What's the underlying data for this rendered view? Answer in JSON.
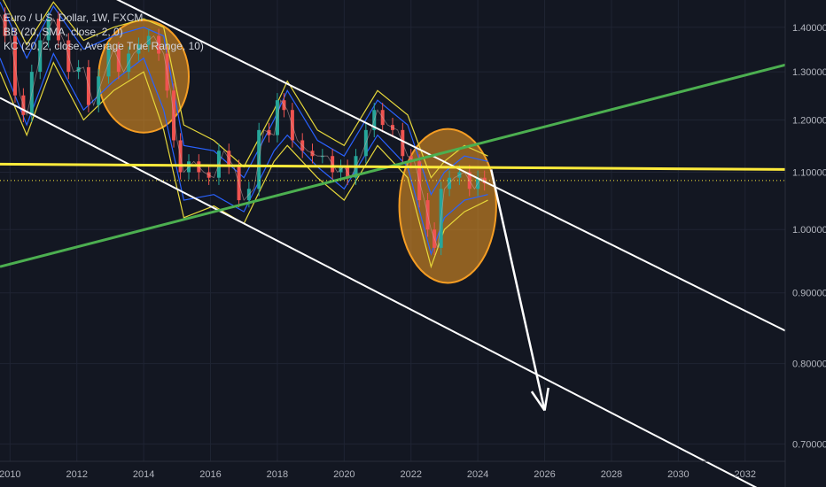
{
  "legend": {
    "symbol": "Euro / U.S. Dollar, 1W, FXCM",
    "bb": "BB (20, SMA, close, 2, 0)",
    "kc": "KC (20, 2, close, Average True Range, 10)"
  },
  "colors": {
    "background": "#131722",
    "grid": "#1f2433",
    "axis_text": "#b2b5be",
    "trend_white": "#ffffff",
    "support_green": "#4caf50",
    "resistance_yellow": "#ffeb3b",
    "highlight_orange": "#f59d23",
    "bb_band": "#2962ff",
    "kc_band": "#e6d73a",
    "candle_up": "#26a69a",
    "candle_down": "#ef5350"
  },
  "chart_data": {
    "type": "line",
    "x_ticks": [
      2010,
      2012,
      2014,
      2016,
      2018,
      2020,
      2022,
      2024,
      2026,
      2028,
      2030,
      2032
    ],
    "y_ticks": [
      "1.40000",
      "1.30000",
      "1.20000",
      "1.10000",
      "1.00000",
      "0.90000",
      "0.80000",
      "0.70000"
    ],
    "y_tick_values": [
      1.4,
      1.3,
      1.2,
      1.1,
      1.0,
      0.9,
      0.8,
      0.7
    ],
    "xlim": [
      2009.7,
      2033.2
    ],
    "ylim": [
      0.68,
      1.465
    ],
    "y_scale": "log",
    "price": {
      "x": [
        2009.7,
        2010.0,
        2010.3,
        2010.5,
        2010.8,
        2011.0,
        2011.3,
        2011.6,
        2011.9,
        2012.2,
        2012.5,
        2012.8,
        2013.1,
        2013.4,
        2013.7,
        2014.0,
        2014.3,
        2014.6,
        2014.8,
        2015.0,
        2015.2,
        2015.5,
        2015.8,
        2016.1,
        2016.4,
        2016.7,
        2017.0,
        2017.3,
        2017.6,
        2017.9,
        2018.1,
        2018.3,
        2018.6,
        2018.9,
        2019.2,
        2019.5,
        2019.8,
        2020.0,
        2020.2,
        2020.5,
        2020.8,
        2021.0,
        2021.3,
        2021.6,
        2021.9,
        2022.1,
        2022.4,
        2022.6,
        2022.8,
        2023.0,
        2023.3,
        2023.6,
        2023.9,
        2024.1,
        2024.3
      ],
      "y": [
        1.43,
        1.38,
        1.25,
        1.21,
        1.3,
        1.37,
        1.42,
        1.37,
        1.3,
        1.31,
        1.23,
        1.29,
        1.35,
        1.3,
        1.34,
        1.36,
        1.38,
        1.34,
        1.26,
        1.16,
        1.1,
        1.12,
        1.1,
        1.09,
        1.14,
        1.11,
        1.05,
        1.07,
        1.18,
        1.17,
        1.24,
        1.22,
        1.16,
        1.14,
        1.13,
        1.13,
        1.1,
        1.11,
        1.09,
        1.13,
        1.18,
        1.22,
        1.19,
        1.18,
        1.13,
        1.12,
        1.05,
        1.0,
        0.97,
        1.07,
        1.09,
        1.1,
        1.07,
        1.09,
        1.08
      ]
    },
    "bb_band": {
      "x": [
        2009.7,
        2010.5,
        2011.3,
        2012.2,
        2013.1,
        2014.0,
        2014.6,
        2015.2,
        2016.1,
        2017.0,
        2017.9,
        2018.3,
        2019.2,
        2020.0,
        2021.0,
        2021.9,
        2022.6,
        2023.0,
        2023.6,
        2024.3
      ],
      "upper": [
        1.46,
        1.33,
        1.45,
        1.35,
        1.38,
        1.4,
        1.38,
        1.15,
        1.14,
        1.09,
        1.2,
        1.26,
        1.16,
        1.13,
        1.24,
        1.19,
        1.06,
        1.1,
        1.13,
        1.12
      ],
      "lower": [
        1.33,
        1.19,
        1.34,
        1.22,
        1.28,
        1.33,
        1.22,
        1.05,
        1.06,
        1.03,
        1.14,
        1.17,
        1.11,
        1.07,
        1.17,
        1.11,
        0.96,
        1.02,
        1.05,
        1.06
      ]
    },
    "kc_band": {
      "x": [
        2009.7,
        2010.5,
        2011.3,
        2012.2,
        2013.1,
        2014.0,
        2014.6,
        2015.2,
        2016.1,
        2017.0,
        2017.9,
        2018.3,
        2019.2,
        2020.0,
        2021.0,
        2021.9,
        2022.6,
        2023.0,
        2023.6,
        2024.3
      ],
      "upper": [
        1.48,
        1.36,
        1.46,
        1.37,
        1.4,
        1.42,
        1.4,
        1.19,
        1.16,
        1.11,
        1.22,
        1.28,
        1.18,
        1.15,
        1.26,
        1.21,
        1.09,
        1.12,
        1.15,
        1.13
      ],
      "lower": [
        1.3,
        1.17,
        1.32,
        1.2,
        1.26,
        1.3,
        1.18,
        1.02,
        1.04,
        1.01,
        1.12,
        1.15,
        1.09,
        1.05,
        1.15,
        1.09,
        0.94,
        1.0,
        1.03,
        1.05
      ]
    },
    "drawings": {
      "channel_upper": {
        "x": [
          2009.7,
          2033.2
        ],
        "y": [
          1.615,
          0.845
        ]
      },
      "channel_lower": {
        "x": [
          2009.7,
          2033.2
        ],
        "y": [
          1.245,
          0.635
        ]
      },
      "green_trendline": {
        "x": [
          2009.7,
          2033.2
        ],
        "y": [
          0.94,
          1.315
        ]
      },
      "yellow_horizontal": {
        "x": [
          2009.7,
          2033.2
        ],
        "y": [
          1.115,
          1.105
        ]
      },
      "current_price_line": 1.085,
      "projection_arrow": {
        "from": [
          2024.4,
          1.105
        ],
        "to": [
          2026.0,
          0.74
        ]
      },
      "highlight_zones": [
        {
          "center": [
            2014.0,
            1.29
          ],
          "radius_years": 1.35,
          "radius_price": 0.115
        },
        {
          "center": [
            2023.1,
            1.04
          ],
          "radius_years": 1.45,
          "radius_price": 0.125
        }
      ]
    }
  }
}
